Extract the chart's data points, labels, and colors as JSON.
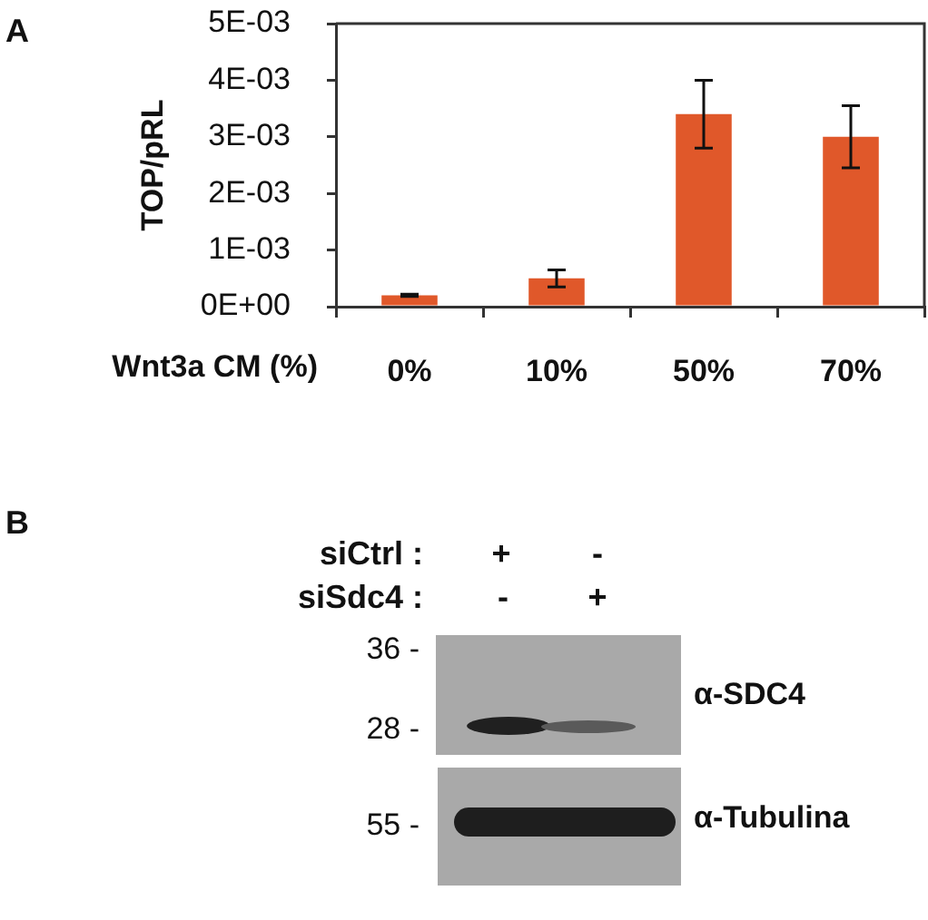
{
  "chart_data": [
    {
      "type": "bar",
      "ylabel": "TOP/pRL",
      "xlabel": "Wnt3a CM (%)",
      "categories": [
        "0%",
        "10%",
        "50%",
        "70%"
      ],
      "values": [
        0.0002,
        0.0005,
        0.0034,
        0.003
      ],
      "errors": [
        2e-05,
        0.00015,
        0.0006,
        0.00055
      ],
      "color": "#e0582a",
      "ylim": [
        0,
        0.005
      ],
      "yticks": [
        {
          "value": 0,
          "label": "0E+00"
        },
        {
          "value": 0.001,
          "label": "1E-03"
        },
        {
          "value": 0.002,
          "label": "2E-03"
        },
        {
          "value": 0.003,
          "label": "3E-03"
        },
        {
          "value": 0.004,
          "label": "4E-03"
        },
        {
          "value": 0.005,
          "label": "5E-03"
        }
      ],
      "annotations": [
        "A"
      ]
    },
    {
      "type": "other",
      "annotations": [
        "B",
        "siCtrl :",
        "+",
        "-",
        "siSdc4 :",
        "-",
        "+",
        "36 -",
        "28 -",
        "55 -",
        "α-SDC4",
        "α-Tubulina"
      ]
    }
  ]
}
